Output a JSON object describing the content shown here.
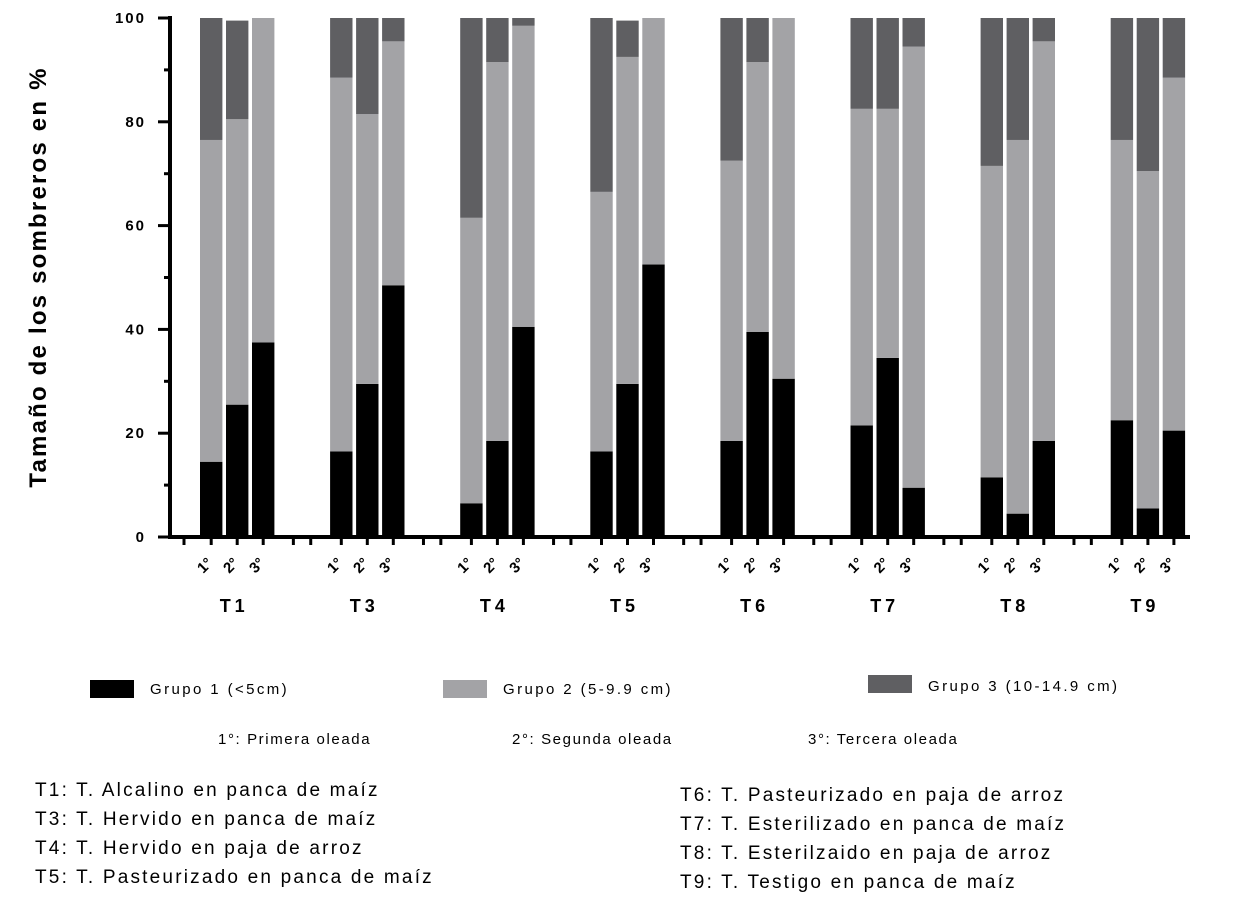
{
  "chart_data": {
    "type": "bar",
    "stacked": true,
    "ylabel": "Tamaño de los sombreros en %",
    "ylim": [
      0,
      100
    ],
    "yticks": [
      "0",
      "20",
      "40",
      "60",
      "80",
      "100"
    ],
    "groups": [
      "T1",
      "T3",
      "T4",
      "T5",
      "T6",
      "T7",
      "T8",
      "T9"
    ],
    "waves": [
      "1°",
      "2°",
      "3°"
    ],
    "series": [
      {
        "name": "Grupo 1 (<5cm)",
        "color": "#000000",
        "values": [
          [
            14.5,
            25.5,
            37.5
          ],
          [
            16.5,
            29.5,
            48.5
          ],
          [
            6.5,
            18.5,
            40.5
          ],
          [
            16.5,
            29.5,
            52.5
          ],
          [
            18.5,
            39.5,
            30.5
          ],
          [
            21.5,
            34.5,
            9.5
          ],
          [
            11.5,
            4.5,
            18.5
          ],
          [
            22.5,
            5.5,
            20.5
          ]
        ]
      },
      {
        "name": "Grupo 2 (5-9.9 cm)",
        "color": "#a3a3a6",
        "values": [
          [
            62,
            55,
            62.5
          ],
          [
            72,
            52,
            47
          ],
          [
            55,
            73,
            58
          ],
          [
            50,
            63,
            47.5
          ],
          [
            54,
            52,
            69.5
          ],
          [
            61,
            48,
            85
          ],
          [
            60,
            72,
            77
          ],
          [
            54,
            65,
            68
          ]
        ]
      },
      {
        "name": "Grupo 3 (10-14.9 cm)",
        "color": "#5f5f62",
        "values": [
          [
            23.5,
            19,
            0
          ],
          [
            11.5,
            18.5,
            4.5
          ],
          [
            38.5,
            8.5,
            1.5
          ],
          [
            33.5,
            7,
            0
          ],
          [
            27.5,
            8.5,
            0
          ],
          [
            17.5,
            17.5,
            5.5
          ],
          [
            28.5,
            23.5,
            4.5
          ],
          [
            23.5,
            29.5,
            11.5
          ]
        ]
      }
    ],
    "legend_position": "bottom"
  },
  "wave_notes": [
    "1°: Primera oleada",
    "2°: Segunda oleada",
    "3°: Tercera oleada"
  ],
  "treatment_notes": {
    "left": [
      "T1: T. Alcalino en panca de maíz",
      "T3: T. Hervido en panca de maíz",
      "T4: T. Hervido en paja de arroz",
      "T5: T. Pasteurizado en panca de maíz"
    ],
    "right": [
      "T6: T. Pasteurizado en paja de arroz",
      "T7: T. Esterilizado en panca de maíz",
      "T8: T. Esterilzaido en paja de arroz",
      "T9: T. Testigo en panca de maíz"
    ]
  }
}
